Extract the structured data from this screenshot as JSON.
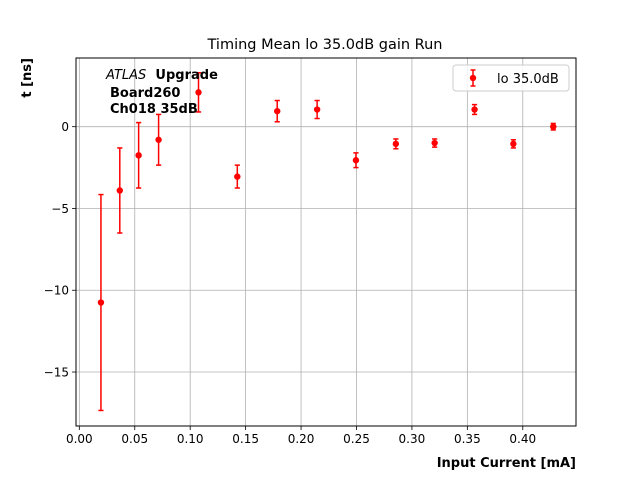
{
  "chart_data": {
    "type": "scatter",
    "title": "Timing Mean lo 35.0dB gain Run",
    "xlabel": "Input Current [mA]",
    "ylabel": "t [ns]",
    "xlim": [
      -0.003,
      0.448
    ],
    "ylim": [
      -18.3,
      4.2
    ],
    "xticks": [
      0.0,
      0.05,
      0.1,
      0.15,
      0.2,
      0.25,
      0.3,
      0.35,
      0.4
    ],
    "xtick_labels": [
      "0.00",
      "0.05",
      "0.10",
      "0.15",
      "0.20",
      "0.25",
      "0.30",
      "0.35",
      "0.40"
    ],
    "yticks": [
      -15,
      -10,
      -5,
      0
    ],
    "ytick_labels": [
      "−15",
      "−10",
      "−5",
      "0"
    ],
    "grid": true,
    "legend_position": "top-right",
    "annotations": {
      "atlas": "ATLAS",
      "upgrade": "Upgrade",
      "board": "Board260",
      "channel": "Ch018 35dB"
    },
    "series": [
      {
        "name": "lo 35.0dB",
        "color": "#ff0000",
        "x": [
          0.0195,
          0.0365,
          0.0535,
          0.0715,
          0.1075,
          0.1425,
          0.1785,
          0.2145,
          0.2495,
          0.2855,
          0.3205,
          0.3565,
          0.3915,
          0.4275
        ],
        "y": [
          -10.75,
          -3.9,
          -1.75,
          -0.8,
          2.1,
          -3.05,
          0.95,
          1.05,
          -2.05,
          -1.05,
          -1.0,
          1.05,
          -1.05,
          0.0
        ],
        "err": [
          6.6,
          2.6,
          2.0,
          1.55,
          1.2,
          0.7,
          0.65,
          0.55,
          0.45,
          0.3,
          0.25,
          0.3,
          0.25,
          0.2
        ]
      }
    ]
  }
}
